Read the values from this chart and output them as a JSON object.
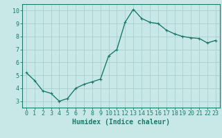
{
  "x": [
    0,
    1,
    2,
    3,
    4,
    5,
    6,
    7,
    8,
    9,
    10,
    11,
    12,
    13,
    14,
    15,
    16,
    17,
    18,
    19,
    20,
    21,
    22,
    23
  ],
  "y": [
    5.2,
    4.6,
    3.8,
    3.6,
    3.0,
    3.2,
    4.0,
    4.3,
    4.5,
    4.7,
    6.5,
    7.0,
    9.1,
    10.1,
    9.4,
    9.1,
    9.0,
    8.5,
    8.2,
    8.0,
    7.9,
    7.85,
    7.5,
    7.7
  ],
  "line_color": "#1a7a6a",
  "marker": "+",
  "marker_size": 3,
  "background_color": "#c8e8e8",
  "grid_color": "#aacece",
  "xlabel": "Humidex (Indice chaleur)",
  "xlabel_fontsize": 7,
  "ylim": [
    2.5,
    10.5
  ],
  "xlim": [
    -0.5,
    23.5
  ],
  "yticks": [
    3,
    4,
    5,
    6,
    7,
    8,
    9,
    10
  ],
  "xticks": [
    0,
    1,
    2,
    3,
    4,
    5,
    6,
    7,
    8,
    9,
    10,
    11,
    12,
    13,
    14,
    15,
    16,
    17,
    18,
    19,
    20,
    21,
    22,
    23
  ],
  "tick_fontsize": 6,
  "line_width": 1.0
}
